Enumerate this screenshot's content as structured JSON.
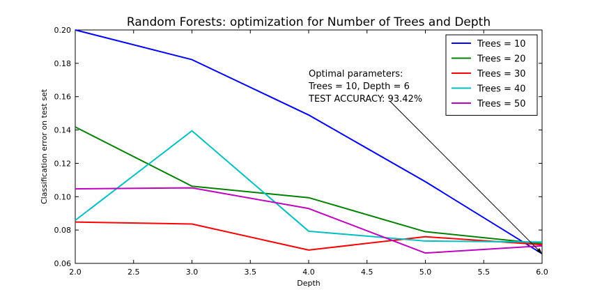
{
  "chart_data": {
    "type": "line",
    "title": "Random Forests: optimization for Number of Trees and Depth",
    "xlabel": "Depth",
    "ylabel": "Classification error on test set",
    "xlim": [
      2.0,
      6.0
    ],
    "ylim": [
      0.06,
      0.2
    ],
    "xticks": [
      "2.0",
      "2.5",
      "3.0",
      "3.5",
      "4.0",
      "4.5",
      "5.0",
      "5.5",
      "6.0"
    ],
    "yticks": [
      "0.06",
      "0.08",
      "0.10",
      "0.12",
      "0.14",
      "0.16",
      "0.18",
      "0.20"
    ],
    "grid": false,
    "legend_position": "top-right",
    "x": [
      2,
      3,
      4,
      5,
      6
    ],
    "series": [
      {
        "name": "Trees = 10",
        "color": "#0000ff",
        "values": [
          0.2,
          0.1822,
          0.149,
          0.109,
          0.0658
        ]
      },
      {
        "name": "Trees = 20",
        "color": "#008000",
        "values": [
          0.1418,
          0.1063,
          0.0994,
          0.079,
          0.0718
        ]
      },
      {
        "name": "Trees = 30",
        "color": "#ff0000",
        "values": [
          0.0848,
          0.0836,
          0.068,
          0.076,
          0.0712
        ]
      },
      {
        "name": "Trees = 40",
        "color": "#00bfbf",
        "values": [
          0.0858,
          0.1395,
          0.0793,
          0.0734,
          0.0728
        ]
      },
      {
        "name": "Trees = 50",
        "color": "#bf00bf",
        "values": [
          0.1047,
          0.1053,
          0.0929,
          0.0662,
          0.0705
        ]
      }
    ],
    "annotation": {
      "lines": [
        "Optimal parameters:",
        "Trees = 10, Depth = 6",
        "TEST ACCURACY: 93.42%"
      ],
      "text_at": {
        "x": 4.0,
        "y": 0.172
      },
      "arrow_from": {
        "x": 4.7,
        "y": 0.157
      },
      "arrow_to": {
        "x": 6.0,
        "y": 0.0658
      }
    }
  }
}
